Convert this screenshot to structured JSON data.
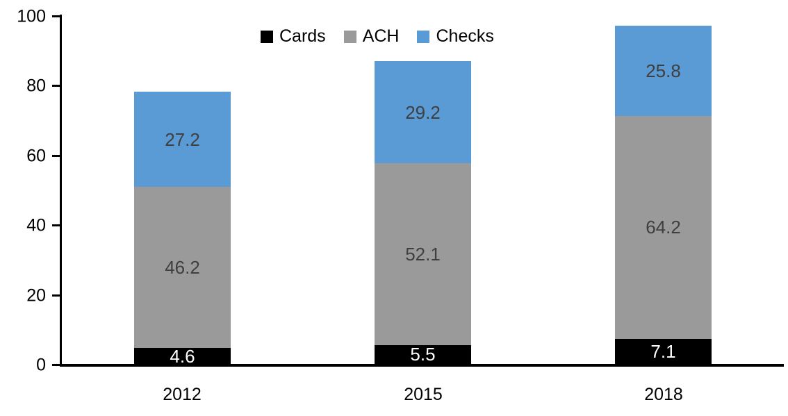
{
  "chart_data": {
    "type": "bar",
    "stacked": true,
    "title": "",
    "xlabel": "",
    "ylabel": "",
    "categories": [
      "2012",
      "2015",
      "2018"
    ],
    "series": [
      {
        "name": "Cards",
        "color": "#000000",
        "label_color": "#ffffff",
        "values": [
          4.6,
          5.5,
          7.1
        ]
      },
      {
        "name": "ACH",
        "color": "#9a9a9a",
        "label_color": "#3f3f3f",
        "values": [
          46.2,
          52.1,
          64.2
        ]
      },
      {
        "name": "Checks",
        "color": "#5b9bd5",
        "label_color": "#3f3f3f",
        "values": [
          27.2,
          29.2,
          25.8
        ]
      }
    ],
    "stack_totals": [
      78.0,
      86.8,
      97.1
    ],
    "y_ticks": [
      0,
      20,
      40,
      60,
      80,
      100
    ],
    "ylim": [
      0,
      100
    ],
    "grid": false,
    "legend_position": "top-center",
    "data_labels": "inside-center",
    "axis_color": "#000000",
    "background_color": "#ffffff"
  }
}
